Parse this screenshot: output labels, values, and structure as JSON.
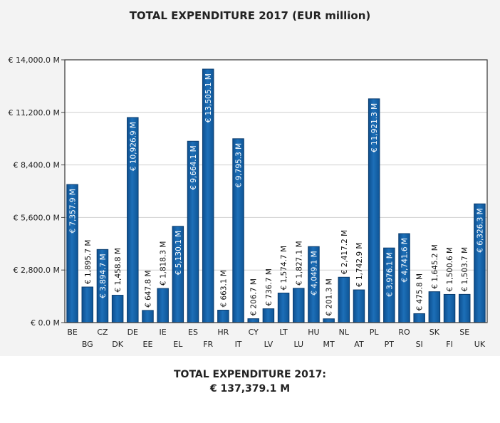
{
  "chart_data": {
    "type": "bar",
    "title": "TOTAL EXPENDITURE 2017 (EUR million)",
    "xlabel": "",
    "ylabel": "",
    "ylim": [
      0,
      14000
    ],
    "yticks": [
      0,
      2800,
      5600,
      8400,
      11200,
      14000
    ],
    "ytick_labels": [
      "€ 0.0 M",
      "€ 2,800.0 M",
      "€ 5,600.0 M",
      "€ 8,400.0 M",
      "€ 11,200.0 M",
      "€ 14,000.0 M"
    ],
    "grid": true,
    "bar_color": "#1d6fb8",
    "categories": [
      "BE",
      "BG",
      "CZ",
      "DK",
      "DE",
      "EE",
      "IE",
      "EL",
      "ES",
      "FR",
      "HR",
      "IT",
      "CY",
      "LV",
      "LT",
      "LU",
      "HU",
      "MT",
      "NL",
      "AT",
      "PL",
      "PT",
      "RO",
      "SI",
      "SK",
      "FI",
      "SE",
      "UK"
    ],
    "values": [
      7357.9,
      1895.7,
      3894.7,
      1458.8,
      10926.9,
      647.8,
      1818.3,
      5130.1,
      9664.1,
      13505.1,
      663.1,
      9795.3,
      206.7,
      736.7,
      1574.7,
      1827.1,
      4049.1,
      201.3,
      2417.2,
      1742.9,
      11921.3,
      3976.1,
      4741.6,
      475.8,
      1645.2,
      1500.6,
      1503.7,
      6326.3
    ],
    "data_labels": [
      "€ 7,357.9 M",
      "€ 1,895.7 M",
      "€ 3,894.7 M",
      "€ 1,458.8 M",
      "€ 10,926.9 M",
      "€ 647.8 M",
      "€ 1,818.3 M",
      "€ 5,130.1 M",
      "€ 9,664.1 M",
      "€ 13,505.1 M",
      "€ 663.1 M",
      "€ 9,795.3 M",
      "€ 206.7 M",
      "€ 736.7 M",
      "€ 1,574.7 M",
      "€ 1,827.1 M",
      "€ 4,049.1 M",
      "€ 201.3 M",
      "€ 2,417.2 M",
      "€ 1,742.9 M",
      "€ 11,921.3 M",
      "€ 3,976.1 M",
      "€ 4,741.6 M",
      "€ 475.8 M",
      "€ 1,645.2 M",
      "€ 1,500.6 M",
      "€ 1,503.7 M",
      "€ 6,326.3 M"
    ]
  },
  "summary": {
    "label": "TOTAL EXPENDITURE 2017:",
    "value": "€ 137,379.1 M"
  }
}
